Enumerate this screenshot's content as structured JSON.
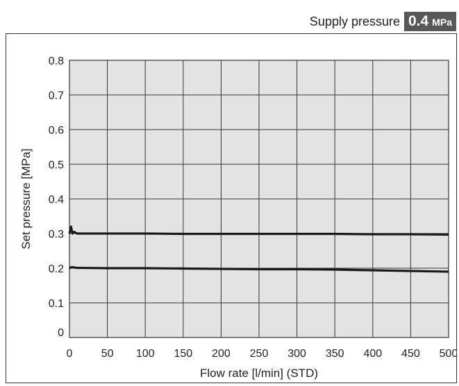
{
  "header": {
    "label": "Supply pressure",
    "value": "0.4",
    "unit": "MPa"
  },
  "colors": {
    "plot_bg": "#e3e3e3",
    "grid": "#333333",
    "line": "#1a1a1a",
    "badge": "#585858"
  },
  "chart_data": {
    "type": "line",
    "xlabel": "Flow rate [l/min] (STD)",
    "ylabel": "Set pressure [MPa]",
    "xlim": [
      0,
      500
    ],
    "ylim": [
      0,
      0.8
    ],
    "x_ticks": [
      "0",
      "50",
      "100",
      "150",
      "200",
      "250",
      "300",
      "350",
      "400",
      "450",
      "500"
    ],
    "y_ticks": [
      "0",
      "0.1",
      "0.2",
      "0.3",
      "0.4",
      "0.5",
      "0.6",
      "0.7",
      "0.8"
    ],
    "grid": true,
    "series": [
      {
        "x": [
          0,
          2,
          4,
          6,
          10,
          50,
          100,
          150,
          200,
          250,
          300,
          350,
          400,
          450,
          500
        ],
        "y": [
          0.3,
          0.32,
          0.3,
          0.305,
          0.3,
          0.3,
          0.3,
          0.299,
          0.299,
          0.299,
          0.299,
          0.299,
          0.298,
          0.298,
          0.297
        ]
      },
      {
        "x": [
          0,
          3,
          10,
          50,
          100,
          150,
          200,
          250,
          300,
          350,
          400,
          450,
          500
        ],
        "y": [
          0.2,
          0.203,
          0.201,
          0.2,
          0.2,
          0.199,
          0.198,
          0.197,
          0.197,
          0.196,
          0.194,
          0.192,
          0.19
        ]
      }
    ]
  }
}
